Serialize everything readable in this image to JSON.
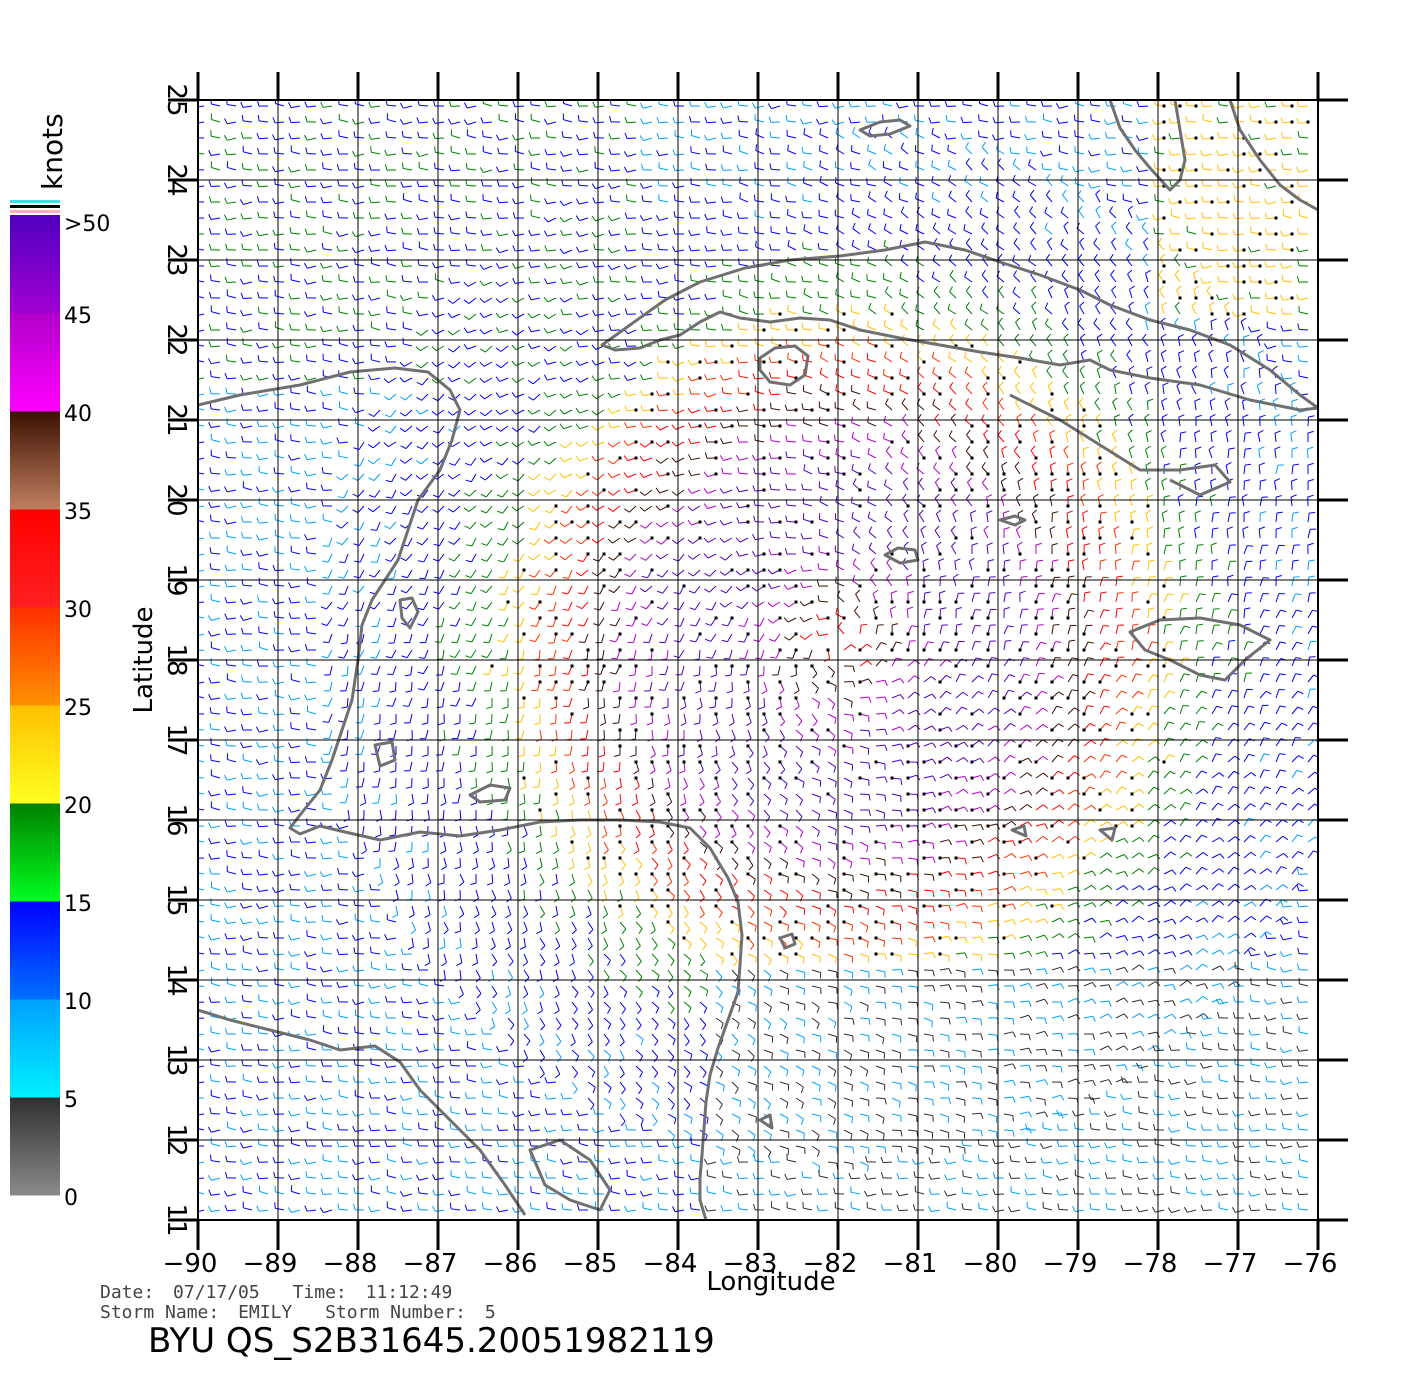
{
  "map": {
    "title": "BYU QS_S2B31645.20051982119",
    "date_label": "Date:",
    "date_value": "07/17/05",
    "time_label": "Time:",
    "time_value": "11:12:49",
    "storm_name_label": "Storm Name:",
    "storm_name_value": "EMILY",
    "storm_number_label": "Storm Number:",
    "storm_number_value": "5",
    "xlabel": "Longitude",
    "ylabel": "Latitude",
    "lon_range": [
      -90,
      -76
    ],
    "lat_range": [
      11,
      25
    ],
    "lon_ticks": [
      "−90",
      "−89",
      "−88",
      "−87",
      "−86",
      "−85",
      "−84",
      "−83",
      "−82",
      "−81",
      "−80",
      "−79",
      "−78",
      "−77",
      "−76"
    ],
    "lat_ticks": [
      "11",
      "12",
      "13",
      "14",
      "15",
      "16",
      "17",
      "18",
      "19",
      "20",
      "21",
      "22",
      "23",
      "24",
      "25"
    ],
    "storm_center": {
      "lon": -82.0,
      "lat": 18.2
    },
    "coast_color": "#707070",
    "grid_color": "#000000"
  },
  "colorbar": {
    "unit": "knots",
    "labels": [
      "0",
      "5",
      "10",
      "15",
      "20",
      "25",
      "30",
      "35",
      "40",
      "45",
      ">50"
    ],
    "bands": [
      {
        "from": 0,
        "to": 5,
        "top": "#303030",
        "bottom": "#8a8a8a"
      },
      {
        "from": 5,
        "to": 10,
        "top": "#00a0ff",
        "bottom": "#00f0ff"
      },
      {
        "from": 10,
        "to": 15,
        "top": "#0000ff",
        "bottom": "#0070ff"
      },
      {
        "from": 15,
        "to": 20,
        "top": "#008000",
        "bottom": "#00ff20"
      },
      {
        "from": 20,
        "to": 25,
        "top": "#ffc000",
        "bottom": "#ffff20"
      },
      {
        "from": 25,
        "to": 30,
        "top": "#ff3000",
        "bottom": "#ff9000"
      },
      {
        "from": 30,
        "to": 35,
        "top": "#ff0000",
        "bottom": "#ff2020"
      },
      {
        "from": 35,
        "to": 40,
        "top": "#3a1000",
        "bottom": "#c08060"
      },
      {
        "from": 40,
        "to": 45,
        "top": "#b000c8",
        "bottom": "#ff00ff"
      },
      {
        "from": 45,
        "to": 50,
        "top": "#5000c0",
        "bottom": "#a000d0"
      }
    ]
  }
}
